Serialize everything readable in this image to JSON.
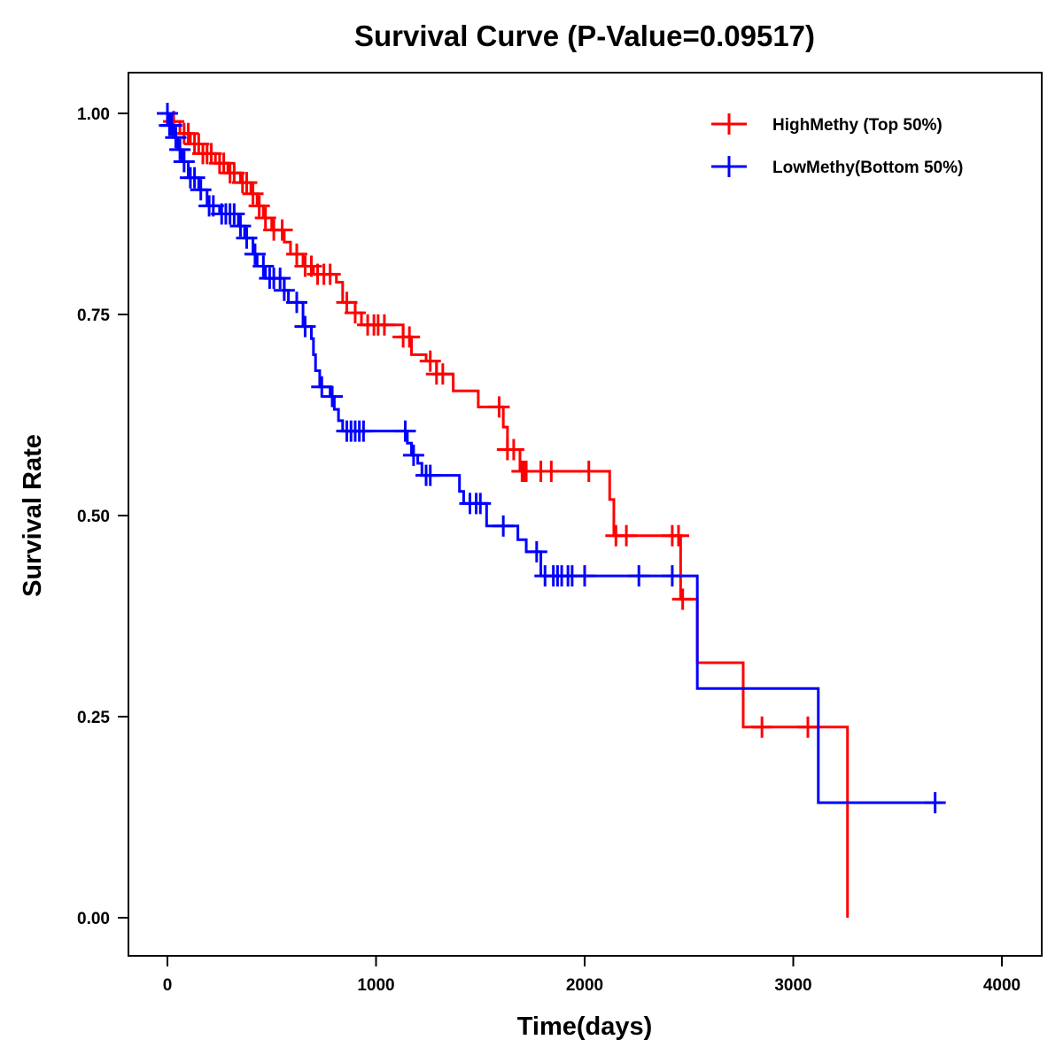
{
  "chart_data": {
    "type": "line",
    "subtype": "kaplan-meier step",
    "title": "Survival Curve (P-Value=0.09517)",
    "xlabel": "Time(days)",
    "ylabel": "Survival Rate",
    "xlim": [
      -200,
      4200
    ],
    "ylim": [
      -0.045,
      1.05
    ],
    "xticks": [
      0,
      1000,
      2000,
      3000,
      4000
    ],
    "xtick_labels": [
      "0",
      "1000",
      "2000",
      "3000",
      "4000"
    ],
    "yticks": [
      0.0,
      0.25,
      0.5,
      0.75,
      1.0
    ],
    "ytick_labels": [
      "0.00",
      "0.25",
      "0.50",
      "0.75",
      "1.00"
    ],
    "grid": false,
    "legend_position": "top-right",
    "series": [
      {
        "name": "HighMethy (Top 50%)",
        "color": "#ff0000",
        "steps": [
          [
            0,
            1.0
          ],
          [
            20,
            0.99
          ],
          [
            60,
            0.975
          ],
          [
            110,
            0.962
          ],
          [
            170,
            0.95
          ],
          [
            230,
            0.938
          ],
          [
            290,
            0.926
          ],
          [
            350,
            0.914
          ],
          [
            400,
            0.9
          ],
          [
            430,
            0.885
          ],
          [
            460,
            0.87
          ],
          [
            500,
            0.855
          ],
          [
            560,
            0.84
          ],
          [
            590,
            0.825
          ],
          [
            650,
            0.81
          ],
          [
            700,
            0.8
          ],
          [
            810,
            0.79
          ],
          [
            840,
            0.765
          ],
          [
            900,
            0.752
          ],
          [
            930,
            0.737
          ],
          [
            1130,
            0.722
          ],
          [
            1170,
            0.7
          ],
          [
            1240,
            0.692
          ],
          [
            1290,
            0.676
          ],
          [
            1370,
            0.655
          ],
          [
            1490,
            0.635
          ],
          [
            1610,
            0.61
          ],
          [
            1630,
            0.582
          ],
          [
            1690,
            0.555
          ],
          [
            2120,
            0.52
          ],
          [
            2140,
            0.475
          ],
          [
            2460,
            0.396
          ],
          [
            2540,
            0.317
          ],
          [
            2760,
            0.237
          ],
          [
            3260,
            0.0
          ]
        ],
        "end_time": 3260,
        "censor_times": [
          30,
          80,
          100,
          130,
          150,
          170,
          190,
          210,
          250,
          270,
          300,
          320,
          360,
          380,
          410,
          440,
          470,
          510,
          550,
          620,
          660,
          690,
          720,
          750,
          780,
          860,
          900,
          960,
          990,
          1010,
          1040,
          1130,
          1160,
          1260,
          1290,
          1320,
          1590,
          1630,
          1660,
          1700,
          1710,
          1720,
          1790,
          1840,
          2020,
          2150,
          2200,
          2420,
          2450,
          2470,
          2850,
          3070
        ]
      },
      {
        "name": "LowMethy(Bottom 50%)",
        "color": "#0000ff",
        "steps": [
          [
            0,
            1.0
          ],
          [
            10,
            0.985
          ],
          [
            30,
            0.97
          ],
          [
            50,
            0.955
          ],
          [
            70,
            0.94
          ],
          [
            100,
            0.92
          ],
          [
            150,
            0.905
          ],
          [
            190,
            0.885
          ],
          [
            250,
            0.875
          ],
          [
            340,
            0.86
          ],
          [
            370,
            0.845
          ],
          [
            410,
            0.825
          ],
          [
            430,
            0.81
          ],
          [
            470,
            0.795
          ],
          [
            560,
            0.78
          ],
          [
            580,
            0.765
          ],
          [
            650,
            0.735
          ],
          [
            690,
            0.72
          ],
          [
            700,
            0.7
          ],
          [
            710,
            0.68
          ],
          [
            730,
            0.66
          ],
          [
            780,
            0.648
          ],
          [
            800,
            0.632
          ],
          [
            820,
            0.618
          ],
          [
            840,
            0.605
          ],
          [
            1150,
            0.59
          ],
          [
            1170,
            0.575
          ],
          [
            1200,
            0.565
          ],
          [
            1220,
            0.55
          ],
          [
            1400,
            0.53
          ],
          [
            1420,
            0.515
          ],
          [
            1530,
            0.487
          ],
          [
            1680,
            0.47
          ],
          [
            1720,
            0.455
          ],
          [
            1790,
            0.425
          ],
          [
            2540,
            0.285
          ],
          [
            3120,
            0.143
          ]
        ],
        "end_time": 3710,
        "censor_times": [
          0,
          10,
          20,
          40,
          60,
          80,
          110,
          130,
          160,
          200,
          220,
          260,
          280,
          300,
          320,
          350,
          380,
          420,
          460,
          490,
          510,
          540,
          560,
          620,
          660,
          740,
          790,
          860,
          880,
          900,
          920,
          940,
          1140,
          1180,
          1240,
          1260,
          1450,
          1480,
          1500,
          1610,
          1770,
          1810,
          1850,
          1870,
          1890,
          1920,
          1940,
          2000,
          2260,
          2420,
          3680
        ]
      }
    ]
  }
}
